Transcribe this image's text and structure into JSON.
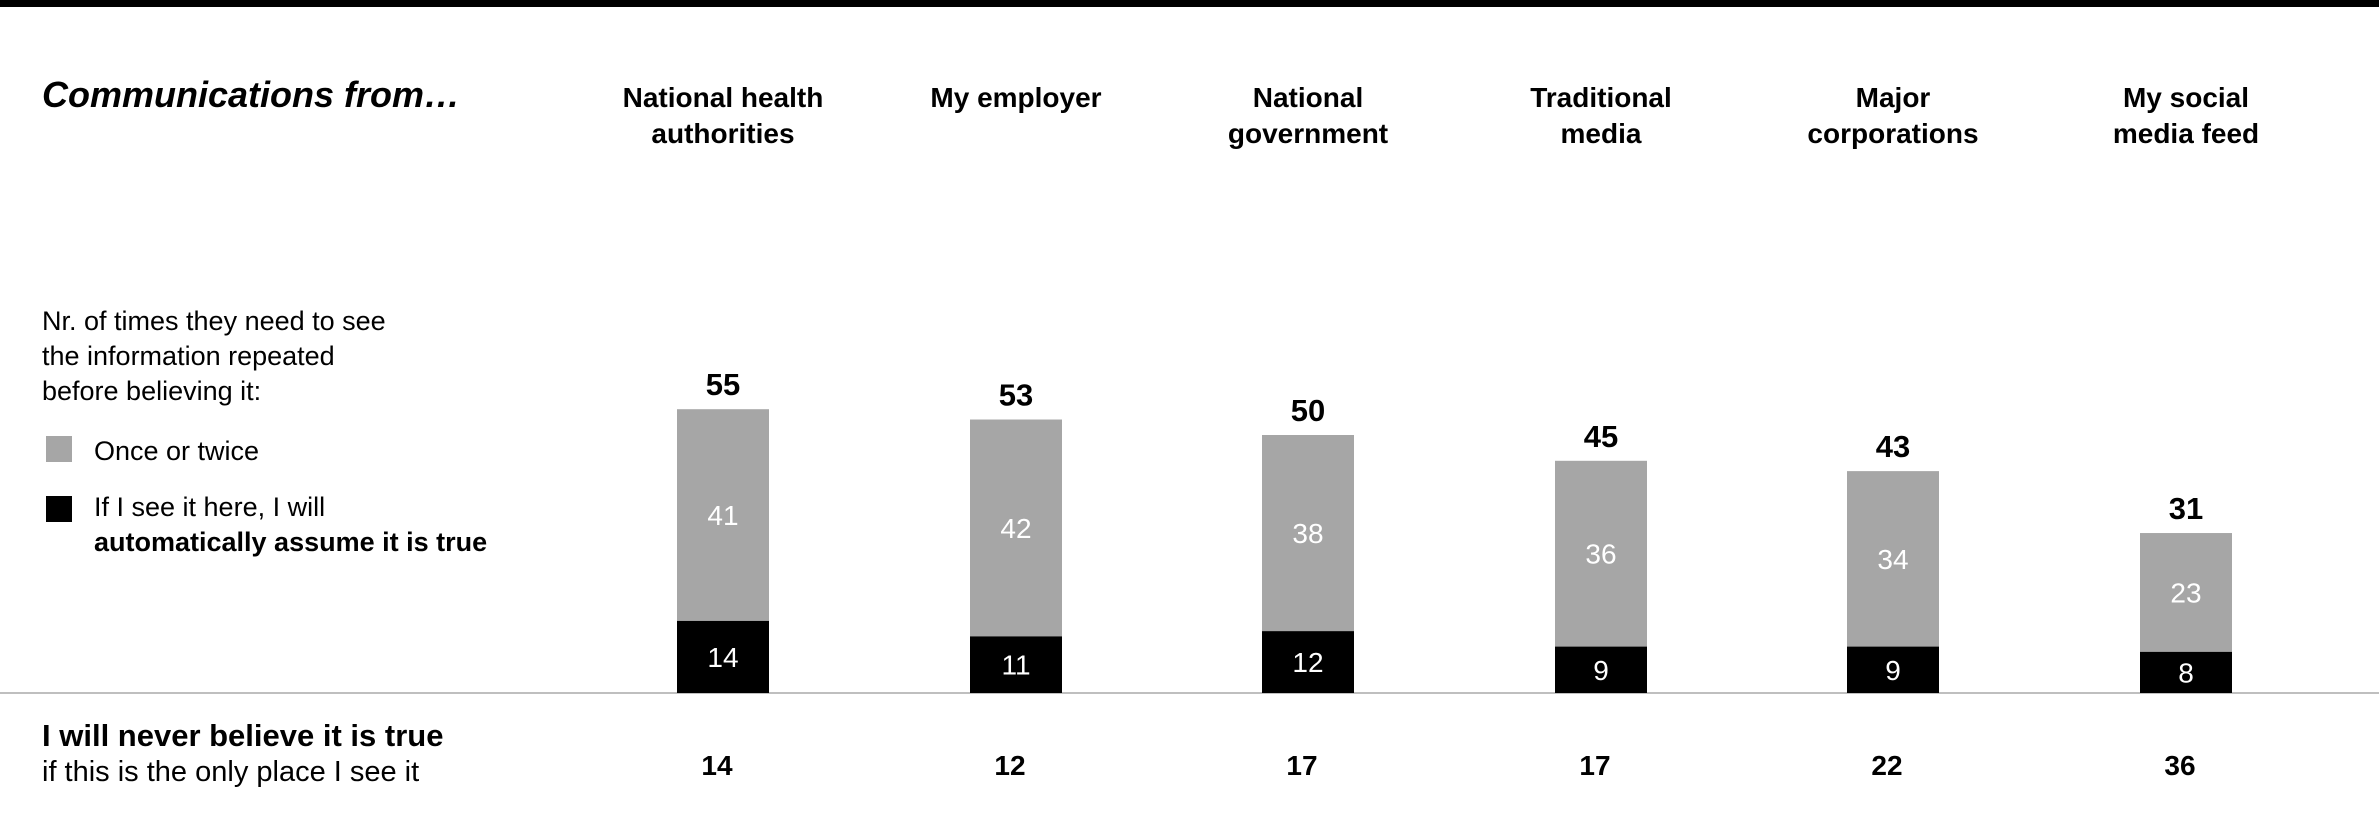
{
  "heading": "Communications from…",
  "legend": {
    "intro": "Nr. of times they need to see\nthe information repeated\nbefore believing it:",
    "items": [
      {
        "label": "Once or twice",
        "label_bold": "",
        "color": "#a6a6a6"
      },
      {
        "label": "If I see it here, I will",
        "label_bold": "automatically assume it is true",
        "color": "#000000"
      }
    ]
  },
  "bottom": {
    "title": "I will never believe it is true",
    "subtitle": "if this is the only place I see it"
  },
  "chart_data": {
    "type": "bar",
    "stacked": true,
    "categories": [
      "National health\nauthorities",
      "My employer",
      "National\ngovernment",
      "Traditional\nmedia",
      "Major\ncorporations",
      "My social\nmedia feed"
    ],
    "series": [
      {
        "name": "If I see it here, I will automatically assume it is true",
        "values": [
          14,
          11,
          12,
          9,
          9,
          8
        ],
        "color": "#000000",
        "label_color": "#ffffff"
      },
      {
        "name": "Once or twice",
        "values": [
          41,
          42,
          38,
          36,
          34,
          23
        ],
        "color": "#a6a6a6",
        "label_color": "#ffffff"
      }
    ],
    "totals": [
      55,
      53,
      50,
      45,
      43,
      31
    ],
    "never_believe": [
      14,
      12,
      17,
      17,
      22,
      36
    ],
    "ylim": [
      0,
      55
    ],
    "grid": false,
    "legend_position": "left"
  }
}
